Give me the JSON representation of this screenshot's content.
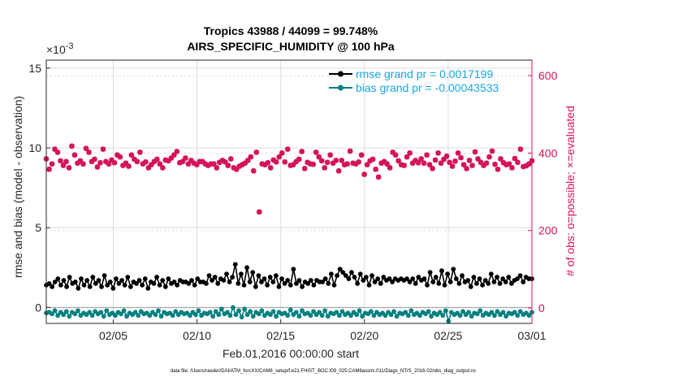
{
  "chart_data": {
    "type": "line",
    "title": "Tropics 43988 / 44099 = 99.748%",
    "subtitle": "AIRS_SPECIFIC_HUMIDITY @ 100 hPa",
    "xlabel": "Feb.01,2016 00:00:00 start",
    "ylabel_left": "rmse and bias (model - observation)",
    "ylabel_right": "# of obs: o=possible; ×=evaluated",
    "exponent_label": "×10",
    "exponent_power": "-3",
    "footnote": "data file: /Users/raeder/DAI/ATM_forcXX/CAM6_setup/f.e21.FHIST_BGC.f09_025.CAM6assim.011/Diags_NTrS_2016-02/obs_diag_output.nc",
    "x_range_days": [
      1,
      30
    ],
    "x_ticks": [
      {
        "label": "02/05",
        "day": 5
      },
      {
        "label": "02/10",
        "day": 10
      },
      {
        "label": "02/15",
        "day": 15
      },
      {
        "label": "02/20",
        "day": 20
      },
      {
        "label": "02/25",
        "day": 25
      },
      {
        "label": "03/01",
        "day": 30
      }
    ],
    "ylim_left": [
      -1.0,
      15.5
    ],
    "left_ticks": [
      {
        "label": "0",
        "value": 0
      },
      {
        "label": "5",
        "value": 5
      },
      {
        "label": "10",
        "value": 10
      },
      {
        "label": "15",
        "value": 15
      }
    ],
    "ylim_right": [
      -40,
      640
    ],
    "right_ticks": [
      {
        "label": "0",
        "value": 0
      },
      {
        "label": "200",
        "value": 200
      },
      {
        "label": "400",
        "value": 400
      },
      {
        "label": "600",
        "value": 600
      }
    ],
    "left_units": "x10^-3",
    "legend": [
      {
        "label": "rmse grand pr = 0.0017199",
        "color": "#000000",
        "marker": "circle"
      },
      {
        "label": "bias grand pr = -0.00043533",
        "color": "#008080",
        "marker": "circle"
      }
    ],
    "series": [
      {
        "name": "rmse",
        "axis": "left",
        "color": "#000000",
        "values": [
          1.4,
          1.5,
          1.3,
          1.6,
          1.8,
          1.4,
          1.7,
          1.3,
          1.9,
          1.5,
          1.6,
          1.2,
          1.8,
          1.4,
          1.7,
          1.3,
          1.9,
          1.5,
          1.7,
          1.3,
          2.0,
          1.4,
          1.6,
          1.2,
          1.8,
          1.5,
          1.7,
          1.4,
          1.9,
          1.3,
          1.6,
          1.5,
          1.7,
          1.4,
          1.8,
          1.2,
          1.6,
          1.5,
          1.9,
          1.4,
          1.7,
          1.3,
          1.8,
          1.5,
          1.6,
          1.4,
          1.7,
          1.6,
          1.6,
          1.5,
          1.7,
          1.4,
          1.8,
          1.6,
          1.6,
          1.5,
          2.0,
          1.7,
          1.9,
          1.5,
          1.8,
          1.7,
          2.1,
          1.6,
          1.9,
          2.7,
          1.5,
          2.1,
          1.4,
          2.5,
          1.6,
          2.2,
          1.3,
          2.0,
          1.6,
          1.8,
          1.4,
          1.9,
          1.6,
          2.0,
          1.3,
          1.8,
          1.5,
          1.7,
          1.4,
          2.4,
          1.5,
          1.7,
          1.3,
          1.6,
          1.5,
          1.7,
          1.4,
          1.7,
          1.6,
          1.6,
          1.8,
          1.5,
          2.1,
          1.4,
          2.0,
          2.4,
          2.2,
          2.0,
          1.8,
          2.2,
          1.9,
          1.5,
          2.1,
          1.7,
          1.9,
          1.4,
          2.0,
          1.6,
          1.8,
          1.5,
          1.9,
          1.7,
          1.8,
          1.6,
          1.8,
          1.7,
          1.8,
          1.7,
          1.8,
          1.6,
          1.8,
          1.5,
          1.9,
          1.7,
          1.8,
          1.4,
          2.2,
          1.6,
          1.9,
          1.5,
          2.3,
          1.4,
          2.1,
          1.6,
          2.4,
          1.8,
          1.5,
          2.0,
          1.6,
          1.7,
          1.3,
          1.9,
          1.5,
          1.8,
          1.4,
          1.7,
          1.5,
          2.1,
          1.6,
          1.9,
          1.5,
          1.8,
          1.6,
          1.9,
          1.5,
          1.7,
          1.8,
          2.0,
          1.6,
          1.9,
          1.8,
          1.8
        ]
      },
      {
        "name": "bias",
        "axis": "left",
        "color": "#008080",
        "values": [
          -0.35,
          -0.3,
          -0.4,
          -0.2,
          -0.5,
          -0.3,
          -0.45,
          -0.25,
          -0.55,
          -0.3,
          -0.4,
          -0.2,
          -0.5,
          -0.35,
          -0.45,
          -0.3,
          -0.5,
          -0.25,
          -0.4,
          -0.3,
          -0.55,
          -0.2,
          -0.45,
          -0.35,
          -0.5,
          -0.3,
          -0.4,
          -0.2,
          -0.55,
          -0.35,
          -0.45,
          -0.3,
          -0.5,
          -0.25,
          -0.4,
          -0.35,
          -0.5,
          -0.3,
          -0.45,
          -0.2,
          -0.55,
          -0.3,
          -0.4,
          -0.35,
          -0.5,
          -0.25,
          -0.45,
          -0.3,
          -0.4,
          -0.35,
          -0.5,
          -0.3,
          -0.45,
          -0.2,
          -0.5,
          -0.35,
          -0.4,
          -0.3,
          -0.55,
          -0.25,
          -0.45,
          -0.1,
          -0.4,
          -0.3,
          -0.5,
          0.0,
          -0.45,
          -0.2,
          -0.6,
          -0.1,
          -0.45,
          -0.25,
          -0.55,
          -0.3,
          -0.4,
          -0.2,
          -0.5,
          -0.35,
          -0.45,
          -0.25,
          -0.55,
          -0.3,
          -0.4,
          -0.35,
          -0.5,
          -0.15,
          -0.45,
          -0.3,
          -0.55,
          -0.2,
          -0.4,
          -0.35,
          -0.5,
          -0.25,
          -0.45,
          -0.3,
          -0.5,
          -0.2,
          -0.55,
          -0.35,
          -0.4,
          -0.3,
          -0.5,
          -0.25,
          -0.45,
          -0.35,
          -0.5,
          -0.3,
          -0.45,
          -0.2,
          -0.55,
          -0.35,
          -0.4,
          -0.25,
          -0.5,
          -0.3,
          -0.45,
          -0.35,
          -0.5,
          -0.3,
          -0.45,
          -0.25,
          -0.55,
          -0.35,
          -0.4,
          -0.3,
          -0.5,
          -0.2,
          -0.45,
          -0.35,
          -0.5,
          -0.3,
          -0.4,
          -0.25,
          -0.55,
          -0.35,
          -0.45,
          -0.3,
          -0.5,
          -0.2,
          -0.85,
          -0.3,
          -0.45,
          -0.35,
          -0.5,
          -0.25,
          -0.45,
          -0.3,
          -0.55,
          -0.35,
          -0.4,
          -0.2,
          -0.5,
          -0.35,
          -0.45,
          -0.3,
          -0.5,
          -0.25,
          -0.45,
          -0.3,
          -0.55,
          -0.35,
          -0.4,
          -0.3,
          -0.5,
          -0.25,
          -0.45,
          -0.35,
          -0.5,
          -0.3
        ]
      },
      {
        "name": "obs evaluated",
        "axis": "right",
        "color": "#d4145a",
        "values": [
          385,
          358,
          372,
          410,
          402,
          380,
          368,
          378,
          362,
          418,
          395,
          374,
          380,
          372,
          412,
          402,
          378,
          384,
          364,
          375,
          410,
          378,
          372,
          382,
          375,
          395,
          390,
          368,
          374,
          366,
          395,
          384,
          378,
          402,
          372,
          377,
          362,
          370,
          378,
          384,
          372,
          362,
          382,
          380,
          387,
          395,
          404,
          375,
          378,
          387,
          372,
          381,
          374,
          370,
          378,
          378,
          372,
          368,
          372,
          372,
          362,
          376,
          381,
          377,
          368,
          385,
          362,
          358,
          366,
          370,
          374,
          381,
          390,
          354,
          402,
          248,
          372,
          370,
          375,
          362,
          382,
          377,
          390,
          400,
          377,
          410,
          368,
          370,
          378,
          384,
          404,
          360,
          376,
          372,
          371,
          402,
          390,
          380,
          362,
          376,
          395,
          374,
          381,
          354,
          381,
          370,
          372,
          405,
          374,
          372,
          377,
          395,
          345,
          370,
          380,
          384,
          358,
          338,
          374,
          378,
          372,
          362,
          402,
          395,
          380,
          370,
          368,
          390,
          400,
          374,
          381,
          375,
          385,
          374,
          395,
          370,
          360,
          382,
          400,
          374,
          384,
          392,
          376,
          366,
          379,
          400,
          388,
          370,
          360,
          381,
          368,
          403,
          385,
          376,
          368,
          374,
          390,
          405,
          371,
          358,
          385,
          375,
          370,
          372,
          362,
          386,
          376,
          410,
          365,
          367,
          372,
          380
        ]
      },
      {
        "name": "obs possible",
        "axis": "right",
        "color": "#d4145a",
        "marker": "o",
        "values": [
          385,
          359,
          372,
          410,
          402,
          380,
          369,
          378,
          362,
          418,
          395,
          374,
          380,
          372,
          412,
          402,
          378,
          384,
          364,
          375,
          410,
          378,
          372,
          382,
          375,
          395,
          390,
          368,
          374,
          366,
          395,
          384,
          378,
          402,
          372,
          377,
          362,
          370,
          378,
          384,
          372,
          362,
          382,
          380,
          387,
          395,
          404,
          375,
          378,
          387,
          372,
          381,
          374,
          370,
          378,
          378,
          372,
          368,
          372,
          372,
          362,
          376,
          381,
          377,
          368,
          385,
          362,
          358,
          366,
          370,
          374,
          381,
          390,
          354,
          402,
          248,
          372,
          370,
          375,
          362,
          382,
          377,
          390,
          400,
          377,
          410,
          368,
          370,
          378,
          384,
          404,
          360,
          376,
          372,
          371,
          402,
          390,
          380,
          362,
          376,
          395,
          374,
          381,
          354,
          381,
          370,
          372,
          405,
          374,
          372,
          377,
          395,
          345,
          370,
          380,
          384,
          358,
          338,
          374,
          378,
          372,
          362,
          402,
          395,
          380,
          370,
          368,
          390,
          400,
          374,
          381,
          375,
          385,
          374,
          395,
          370,
          360,
          382,
          400,
          374,
          384,
          392,
          376,
          366,
          379,
          400,
          388,
          370,
          360,
          381,
          368,
          403,
          385,
          376,
          368,
          374,
          390,
          405,
          371,
          358,
          385,
          375,
          370,
          372,
          362,
          386,
          376,
          410,
          365,
          367,
          372,
          380
        ]
      }
    ]
  },
  "colors": {
    "axis": "#262626",
    "grid": "#dcdcdc",
    "right_axis": "#d4145a",
    "legend_text": "#1aa6e0",
    "zero_line": "#a0a0a0"
  }
}
